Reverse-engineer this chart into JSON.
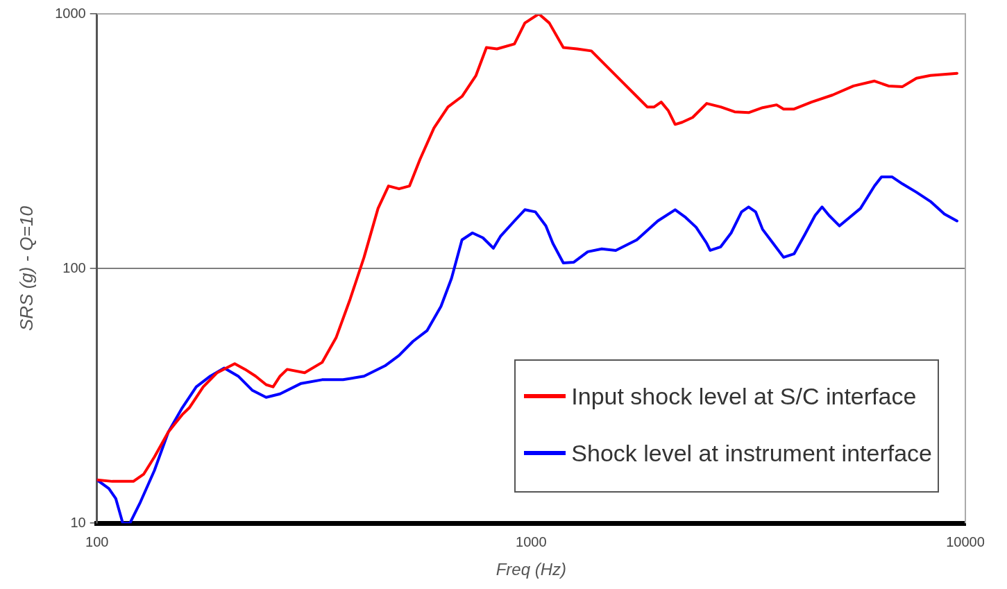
{
  "chart_data": {
    "type": "line",
    "xlabel": "Freq (Hz)",
    "ylabel": "SRS (g) - Q=10",
    "log": "xy",
    "xlim": [
      100,
      10000
    ],
    "ylim": [
      10,
      1000
    ],
    "xticks": [
      100,
      1000,
      10000
    ],
    "yticks": [
      10,
      100,
      1000
    ],
    "grid": "y",
    "legend": "bottom right",
    "marker": "none",
    "line_style": "solid",
    "series": [
      {
        "name": "Input shock level at S/C interface",
        "color": "#ff0000",
        "x": [
          100,
          108.5,
          121.3,
          128.2,
          135.6,
          146,
          157.2,
          163.2,
          175.7,
          189.2,
          207.6,
          219.4,
          232,
          245.3,
          254.5,
          264.1,
          274.2,
          300.9,
          330,
          355.4,
          382.8,
          412.2,
          444,
          469.3,
          496.3,
          524.6,
          554.6,
          597.4,
          643.4,
          692.9,
          746.3,
          788.9,
          834.2,
          915,
          967.2,
          1041.6,
          1101,
          1186,
          1277,
          1376,
          1482,
          1626,
          1751,
          1851,
          1920,
          1993,
          2068,
          2146,
          2227,
          2355,
          2537,
          2732,
          2942,
          3168,
          3412,
          3675,
          3814,
          4032,
          4423,
          4943,
          5526,
          6176,
          6652,
          7164,
          7717,
          8309,
          9566
        ],
        "values": [
          14.8,
          14.6,
          14.6,
          15.6,
          18.2,
          22.8,
          26.7,
          28.4,
          34.3,
          39,
          42.3,
          40.2,
          37.8,
          35,
          34.3,
          37.8,
          40.2,
          39,
          42.8,
          53.5,
          75.7,
          110.7,
          172.3,
          211,
          205.6,
          211,
          268.3,
          356.6,
          431,
          474,
          573,
          738,
          728.6,
          761.6,
          921,
          1000,
          921,
          738,
          728.6,
          715.5,
          630,
          538,
          474,
          431,
          431,
          450.5,
          417.7,
          368.1,
          375.2,
          392.2,
          444.9,
          431,
          412.4,
          409.7,
          428.3,
          439.3,
          423,
          423,
          450.5,
          480,
          521.2,
          544.9,
          521.2,
          517.9,
          559,
          573,
          584.1
        ]
      },
      {
        "name": "Shock level at instrument interface",
        "color": "#0000ff",
        "x": [
          100,
          106.5,
          110.5,
          114.7,
          119.1,
          125.9,
          135.6,
          146,
          157.2,
          169.3,
          182.4,
          196.4,
          211.5,
          227.8,
          245.3,
          264.1,
          295.3,
          330,
          368.8,
          412.2,
          460.7,
          496.3,
          534.5,
          575.6,
          620,
          655.5,
          692.9,
          732.5,
          774.3,
          818.6,
          849.8,
          915,
          967.2,
          1022.6,
          1081,
          1122,
          1186,
          1254,
          1350,
          1454,
          1566,
          1751,
          1957,
          2146,
          2269,
          2399,
          2537,
          2584,
          2732,
          2888,
          3052,
          3168,
          3288,
          3412,
          3608,
          3814,
          4032,
          4263,
          4508,
          4677,
          4853,
          5130,
          5734,
          6176,
          6410,
          6776,
          7164,
          7717,
          8309,
          8948,
          9566
        ],
        "values": [
          14.8,
          13.7,
          12.5,
          10,
          10,
          12.1,
          16.1,
          22.8,
          28.4,
          34.3,
          37.8,
          40.7,
          37.8,
          33.3,
          31.2,
          32.2,
          35.4,
          36.6,
          36.6,
          37.8,
          41.5,
          45.6,
          51.8,
          57,
          71.1,
          91.5,
          129.6,
          138,
          132.1,
          120.2,
          133.8,
          153.8,
          170.2,
          167,
          147.1,
          125.6,
          105.2,
          105.9,
          116.4,
          119.4,
          117.8,
          129.6,
          153.8,
          170.2,
          158.7,
          145.2,
          125.6,
          117.8,
          121.7,
          138,
          167,
          174.5,
          167,
          142.5,
          125.6,
          110.7,
          114.2,
          135.5,
          161.7,
          174.5,
          161.7,
          147.1,
          172.3,
          211,
          229.1,
          229.1,
          215,
          199.3,
          183.5,
          163.8,
          153.8
        ]
      }
    ]
  }
}
